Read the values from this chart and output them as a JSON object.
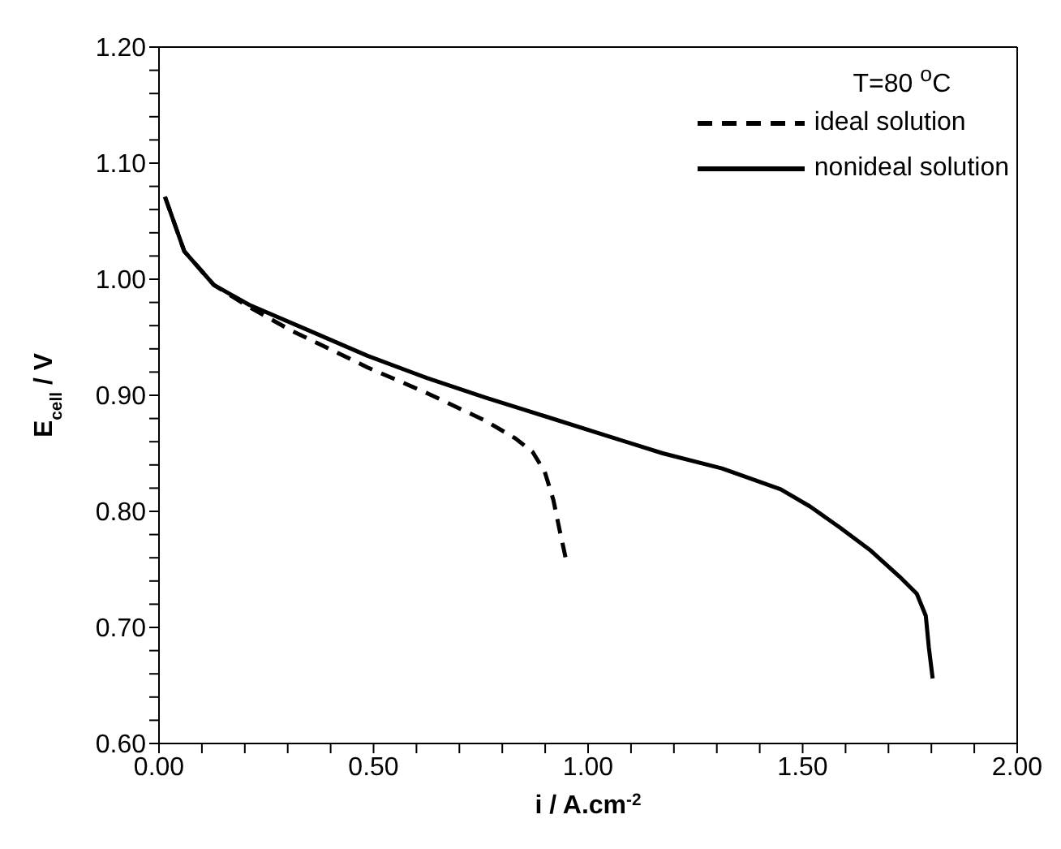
{
  "chart_data": {
    "type": "line",
    "xlabel": "i / A.cm$^{-2}$",
    "ylabel": "E$_{cell}$ / V",
    "legend_title": "T=80 $^{o}$C",
    "legend": "top right",
    "marker": "none",
    "xlim": [
      0,
      2
    ],
    "ylim": [
      0.6,
      1.2
    ],
    "xticks": [
      {
        "value": 0,
        "label": "0.00"
      },
      {
        "value": 0.1,
        "label": null
      },
      {
        "value": 0.2,
        "label": null
      },
      {
        "value": 0.3,
        "label": null
      },
      {
        "value": 0.4,
        "label": null
      },
      {
        "value": 0.5,
        "label": "0.50"
      },
      {
        "value": 0.6,
        "label": null
      },
      {
        "value": 0.7,
        "label": null
      },
      {
        "value": 0.8,
        "label": null
      },
      {
        "value": 0.9,
        "label": null
      },
      {
        "value": 1,
        "label": "1.00"
      },
      {
        "value": 1.1,
        "label": null
      },
      {
        "value": 1.2,
        "label": null
      },
      {
        "value": 1.3,
        "label": null
      },
      {
        "value": 1.4,
        "label": null
      },
      {
        "value": 1.5,
        "label": "1.50"
      },
      {
        "value": 1.6,
        "label": null
      },
      {
        "value": 1.7,
        "label": null
      },
      {
        "value": 1.8,
        "label": null
      },
      {
        "value": 1.9,
        "label": null
      },
      {
        "value": 2,
        "label": "2.00"
      }
    ],
    "yticks": [
      {
        "value": 0.6,
        "label": "0.60"
      },
      {
        "value": 0.62,
        "label": null
      },
      {
        "value": 0.64,
        "label": null
      },
      {
        "value": 0.66,
        "label": null
      },
      {
        "value": 0.68,
        "label": null
      },
      {
        "value": 0.7,
        "label": "0.70"
      },
      {
        "value": 0.72,
        "label": null
      },
      {
        "value": 0.74,
        "label": null
      },
      {
        "value": 0.76,
        "label": null
      },
      {
        "value": 0.78,
        "label": null
      },
      {
        "value": 0.8,
        "label": "0.80"
      },
      {
        "value": 0.82,
        "label": null
      },
      {
        "value": 0.84,
        "label": null
      },
      {
        "value": 0.86,
        "label": null
      },
      {
        "value": 0.88,
        "label": null
      },
      {
        "value": 0.9,
        "label": "0.90"
      },
      {
        "value": 0.92,
        "label": null
      },
      {
        "value": 0.94,
        "label": null
      },
      {
        "value": 0.96,
        "label": null
      },
      {
        "value": 0.98,
        "label": null
      },
      {
        "value": 1,
        "label": "1.00"
      },
      {
        "value": 1.02,
        "label": null
      },
      {
        "value": 1.04,
        "label": null
      },
      {
        "value": 1.06,
        "label": null
      },
      {
        "value": 1.08,
        "label": null
      },
      {
        "value": 1.1,
        "label": "1.10"
      },
      {
        "value": 1.12,
        "label": null
      },
      {
        "value": 1.14,
        "label": null
      },
      {
        "value": 1.16,
        "label": null
      },
      {
        "value": 1.18,
        "label": null
      },
      {
        "value": 1.2,
        "label": "1.20"
      }
    ],
    "series": [
      {
        "name": "ideal solution",
        "color": "#000000",
        "line_style": "dashed",
        "x": [
          0.014,
          0.059,
          0.128,
          0.21,
          0.307,
          0.403,
          0.486,
          0.624,
          0.761,
          0.83,
          0.871,
          0.899,
          0.919,
          0.933,
          0.95
        ],
        "values": [
          1.071,
          1.024,
          0.995,
          0.976,
          0.956,
          0.939,
          0.924,
          0.902,
          0.878,
          0.863,
          0.851,
          0.834,
          0.81,
          0.785,
          0.756
        ]
      },
      {
        "name": "nonideal solution",
        "color": "#000000",
        "line_style": "solid",
        "x": [
          0.014,
          0.059,
          0.128,
          0.21,
          0.348,
          0.486,
          0.624,
          0.761,
          0.899,
          1.036,
          1.174,
          1.312,
          1.449,
          1.518,
          1.587,
          1.656,
          1.725,
          1.766,
          1.787,
          1.794,
          1.803
        ],
        "values": [
          1.071,
          1.024,
          0.995,
          0.978,
          0.956,
          0.934,
          0.915,
          0.898,
          0.882,
          0.866,
          0.85,
          0.837,
          0.819,
          0.804,
          0.786,
          0.767,
          0.744,
          0.729,
          0.71,
          0.683,
          0.656
        ]
      }
    ]
  }
}
